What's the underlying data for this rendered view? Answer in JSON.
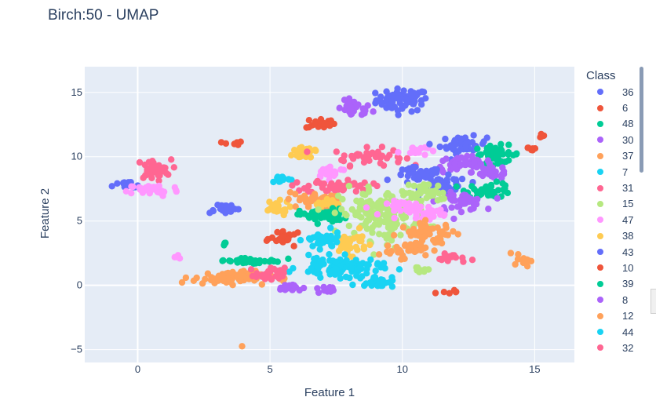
{
  "title": "Birch:50 - UMAP",
  "chart_data": {
    "type": "scatter",
    "title": "Birch:50 - UMAP",
    "xlabel": "Feature 1",
    "ylabel": "Feature 2",
    "xlim": [
      -2,
      16.5
    ],
    "ylim": [
      -6,
      17
    ],
    "xticks": [
      0,
      5,
      10,
      15
    ],
    "yticks": [
      -5,
      0,
      5,
      10,
      15
    ],
    "ytick_labels": [
      "−5",
      "0",
      "5",
      "10",
      "15"
    ],
    "grid": true,
    "plot_background": "#e5ecf6",
    "legend_title": "Class",
    "legend_placement": "right",
    "legend": [
      {
        "name": "36",
        "color": "#636efa"
      },
      {
        "name": "6",
        "color": "#ef553b"
      },
      {
        "name": "48",
        "color": "#00cc96"
      },
      {
        "name": "30",
        "color": "#ab63fa"
      },
      {
        "name": "37",
        "color": "#ffa15a"
      },
      {
        "name": "7",
        "color": "#19d3f3"
      },
      {
        "name": "31",
        "color": "#ff6692"
      },
      {
        "name": "15",
        "color": "#b6e880"
      },
      {
        "name": "47",
        "color": "#ff97ff"
      },
      {
        "name": "38",
        "color": "#fecb52"
      },
      {
        "name": "43",
        "color": "#636efa"
      },
      {
        "name": "10",
        "color": "#ef553b"
      },
      {
        "name": "39",
        "color": "#00cc96"
      },
      {
        "name": "8",
        "color": "#ab63fa"
      },
      {
        "name": "12",
        "color": "#ffa15a"
      },
      {
        "name": "44",
        "color": "#19d3f3"
      },
      {
        "name": "32",
        "color": "#ff6692"
      }
    ],
    "clusters": [
      {
        "color": "#636efa",
        "cx": 10.0,
        "cy": 14.4,
        "rx": 0.9,
        "ry": 0.8,
        "n": 70
      },
      {
        "color": "#ab63fa",
        "cx": 8.2,
        "cy": 13.7,
        "rx": 0.6,
        "ry": 0.6,
        "n": 30
      },
      {
        "color": "#ef553b",
        "cx": 6.9,
        "cy": 12.6,
        "rx": 0.5,
        "ry": 0.4,
        "n": 20
      },
      {
        "color": "#ef553b",
        "cx": 3.6,
        "cy": 11.0,
        "rx": 0.35,
        "ry": 0.2,
        "n": 8
      },
      {
        "color": "#ef553b",
        "cx": 15.2,
        "cy": 11.7,
        "rx": 0.25,
        "ry": 0.2,
        "n": 6
      },
      {
        "color": "#ef553b",
        "cx": 14.8,
        "cy": 10.6,
        "rx": 0.3,
        "ry": 0.15,
        "n": 6
      },
      {
        "color": "#fecb52",
        "cx": 6.4,
        "cy": 10.4,
        "rx": 0.5,
        "ry": 0.6,
        "n": 25
      },
      {
        "color": "#ff6692",
        "cx": 8.7,
        "cy": 10.0,
        "rx": 1.2,
        "ry": 0.6,
        "n": 45
      },
      {
        "color": "#ff97ff",
        "cx": 10.4,
        "cy": 10.5,
        "rx": 0.5,
        "ry": 0.4,
        "n": 15
      },
      {
        "color": "#636efa",
        "cx": 12.3,
        "cy": 10.9,
        "rx": 0.8,
        "ry": 0.6,
        "n": 45
      },
      {
        "color": "#00cc96",
        "cx": 13.6,
        "cy": 10.2,
        "rx": 0.8,
        "ry": 0.6,
        "n": 40
      },
      {
        "color": "#ab63fa",
        "cx": 12.3,
        "cy": 9.4,
        "rx": 1.0,
        "ry": 0.6,
        "n": 45
      },
      {
        "color": "#ab63fa",
        "cx": 13.4,
        "cy": 8.8,
        "rx": 0.7,
        "ry": 0.5,
        "n": 25
      },
      {
        "color": "#636efa",
        "cx": 10.6,
        "cy": 8.5,
        "rx": 0.8,
        "ry": 0.6,
        "n": 40
      },
      {
        "color": "#636efa",
        "cx": 11.6,
        "cy": 7.8,
        "rx": 0.8,
        "ry": 0.6,
        "n": 40
      },
      {
        "color": "#00cc96",
        "cx": 13.3,
        "cy": 7.4,
        "rx": 0.8,
        "ry": 0.5,
        "n": 40
      },
      {
        "color": "#ab63fa",
        "cx": 12.2,
        "cy": 6.5,
        "rx": 0.8,
        "ry": 0.6,
        "n": 45
      },
      {
        "color": "#ff6692",
        "cx": 0.6,
        "cy": 9.0,
        "rx": 0.6,
        "ry": 0.7,
        "n": 35
      },
      {
        "color": "#636efa",
        "cx": -0.4,
        "cy": 7.7,
        "rx": 0.5,
        "ry": 0.35,
        "n": 18
      },
      {
        "color": "#ff97ff",
        "cx": 0.6,
        "cy": 7.4,
        "rx": 0.9,
        "ry": 0.45,
        "n": 40
      },
      {
        "color": "#19d3f3",
        "cx": 5.4,
        "cy": 8.3,
        "rx": 0.35,
        "ry": 0.3,
        "n": 12
      },
      {
        "color": "#ff97ff",
        "cx": 7.3,
        "cy": 8.8,
        "rx": 0.6,
        "ry": 0.4,
        "n": 25
      },
      {
        "color": "#ff6692",
        "cx": 7.6,
        "cy": 7.7,
        "rx": 1.1,
        "ry": 0.5,
        "n": 45
      },
      {
        "color": "#636efa",
        "cx": 3.2,
        "cy": 6.0,
        "rx": 0.6,
        "ry": 0.35,
        "n": 22
      },
      {
        "color": "#fecb52",
        "cx": 5.2,
        "cy": 6.0,
        "rx": 0.5,
        "ry": 0.5,
        "n": 25
      },
      {
        "color": "#ffa15a",
        "cx": 6.5,
        "cy": 6.6,
        "rx": 0.8,
        "ry": 0.6,
        "n": 35
      },
      {
        "color": "#fecb52",
        "cx": 7.2,
        "cy": 6.3,
        "rx": 0.4,
        "ry": 0.4,
        "n": 15
      },
      {
        "color": "#00cc96",
        "cx": 7.0,
        "cy": 5.4,
        "rx": 0.8,
        "ry": 0.5,
        "n": 40
      },
      {
        "color": "#b6e880",
        "cx": 9.3,
        "cy": 5.5,
        "rx": 1.5,
        "ry": 1.8,
        "n": 160
      },
      {
        "color": "#b6e880",
        "cx": 10.9,
        "cy": 7.2,
        "rx": 0.7,
        "ry": 0.7,
        "n": 35
      },
      {
        "color": "#ff97ff",
        "cx": 10.3,
        "cy": 6.0,
        "rx": 0.8,
        "ry": 0.5,
        "n": 35
      },
      {
        "color": "#ff97ff",
        "cx": 11.1,
        "cy": 5.6,
        "rx": 0.5,
        "ry": 0.4,
        "n": 20
      },
      {
        "color": "#ffa15a",
        "cx": 11.0,
        "cy": 4.0,
        "rx": 1.0,
        "ry": 0.8,
        "n": 50
      },
      {
        "color": "#ffa15a",
        "cx": 10.0,
        "cy": 2.8,
        "rx": 0.8,
        "ry": 0.6,
        "n": 35
      },
      {
        "color": "#ff6692",
        "cx": 11.9,
        "cy": 2.1,
        "rx": 0.5,
        "ry": 0.3,
        "n": 20
      },
      {
        "color": "#b6e880",
        "cx": 10.7,
        "cy": 1.2,
        "rx": 0.3,
        "ry": 0.3,
        "n": 10
      },
      {
        "color": "#fecb52",
        "cx": 8.0,
        "cy": 3.3,
        "rx": 0.6,
        "ry": 0.8,
        "n": 35
      },
      {
        "color": "#ef553b",
        "cx": 5.6,
        "cy": 3.6,
        "rx": 0.5,
        "ry": 0.4,
        "n": 25
      },
      {
        "color": "#19d3f3",
        "cx": 7.0,
        "cy": 3.5,
        "rx": 0.6,
        "ry": 0.6,
        "n": 40
      },
      {
        "color": "#19d3f3",
        "cx": 7.6,
        "cy": 1.4,
        "rx": 1.4,
        "ry": 0.7,
        "n": 90
      },
      {
        "color": "#19d3f3",
        "cx": 9.0,
        "cy": 0.3,
        "rx": 0.6,
        "ry": 0.4,
        "n": 30
      },
      {
        "color": "#00cc96",
        "cx": 4.3,
        "cy": 1.9,
        "rx": 1.2,
        "ry": 0.25,
        "n": 30
      },
      {
        "color": "#ffa15a",
        "cx": 3.5,
        "cy": 0.6,
        "rx": 1.3,
        "ry": 0.45,
        "n": 80
      },
      {
        "color": "#ff6692",
        "cx": 5.0,
        "cy": 0.8,
        "rx": 0.5,
        "ry": 0.5,
        "n": 25
      },
      {
        "color": "#ab63fa",
        "cx": 5.7,
        "cy": -0.2,
        "rx": 0.5,
        "ry": 0.25,
        "n": 18
      },
      {
        "color": "#ab63fa",
        "cx": 7.2,
        "cy": -0.3,
        "rx": 0.4,
        "ry": 0.35,
        "n": 15
      },
      {
        "color": "#00cc96",
        "cx": 3.3,
        "cy": 3.3,
        "rx": 0.12,
        "ry": 0.15,
        "n": 4
      },
      {
        "color": "#ff97ff",
        "cx": 1.6,
        "cy": 2.2,
        "rx": 0.15,
        "ry": 0.12,
        "n": 4
      },
      {
        "color": "#ffa15a",
        "cx": 14.5,
        "cy": 2.0,
        "rx": 0.3,
        "ry": 0.5,
        "n": 15
      },
      {
        "color": "#ef553b",
        "cx": 11.8,
        "cy": -0.5,
        "rx": 0.3,
        "ry": 0.12,
        "n": 6
      },
      {
        "color": "#ffa15a",
        "cx": 4.0,
        "cy": -4.7,
        "rx": 0.05,
        "ry": 0.05,
        "n": 1
      }
    ]
  }
}
